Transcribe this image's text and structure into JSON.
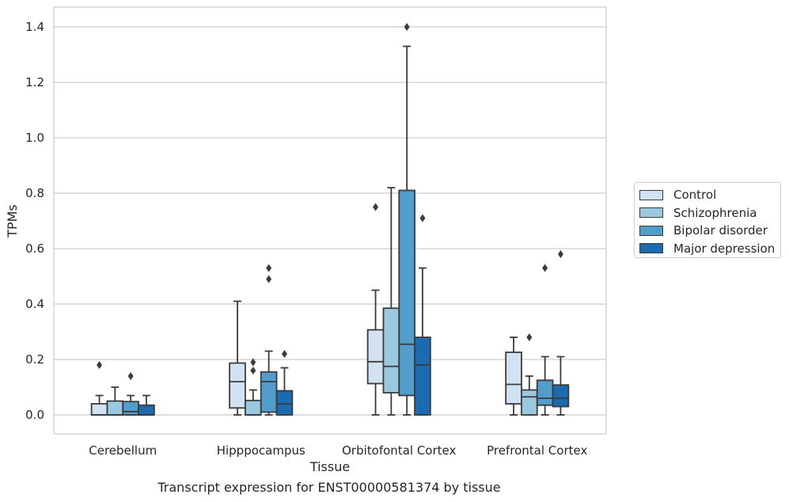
{
  "caption": "Transcript expression for ENST00000581374 by tissue",
  "chart_data": {
    "type": "box",
    "xlabel": "Tissue",
    "ylabel": "TPMs",
    "ylim": [
      -0.07,
      1.47
    ],
    "yticks": [
      "0.0",
      "0.2",
      "0.4",
      "0.6",
      "0.8",
      "1.0",
      "1.2",
      "1.4"
    ],
    "grid": true,
    "legend_position": "right",
    "categories": [
      "Cerebellum",
      "Hipppocampus",
      "Orbitofontal Cortex",
      "Prefrontal Cortex"
    ],
    "series": [
      {
        "name": "Control",
        "color": "#d1e2f2",
        "boxes": [
          {
            "whislo": 0.0,
            "q1": 0.0,
            "med": 0.0,
            "q3": 0.04,
            "whishi": 0.07,
            "fliers": [
              0.18
            ]
          },
          {
            "whislo": 0.0,
            "q1": 0.025,
            "med": 0.12,
            "q3": 0.187,
            "whishi": 0.41,
            "fliers": []
          },
          {
            "whislo": 0.0,
            "q1": 0.113,
            "med": 0.192,
            "q3": 0.307,
            "whishi": 0.45,
            "fliers": [
              0.75
            ]
          },
          {
            "whislo": 0.0,
            "q1": 0.04,
            "med": 0.11,
            "q3": 0.226,
            "whishi": 0.28,
            "fliers": []
          }
        ]
      },
      {
        "name": "Schizophrenia",
        "color": "#9ac8e0",
        "boxes": [
          {
            "whislo": 0.0,
            "q1": 0.0,
            "med": 0.0,
            "q3": 0.05,
            "whishi": 0.1,
            "fliers": []
          },
          {
            "whislo": 0.0,
            "q1": 0.0,
            "med": 0.0,
            "q3": 0.052,
            "whishi": 0.09,
            "fliers": [
              0.16,
              0.19
            ]
          },
          {
            "whislo": 0.0,
            "q1": 0.08,
            "med": 0.175,
            "q3": 0.385,
            "whishi": 0.82,
            "fliers": []
          },
          {
            "whislo": 0.0,
            "q1": 0.0,
            "med": 0.065,
            "q3": 0.09,
            "whishi": 0.14,
            "fliers": [
              0.28
            ]
          }
        ]
      },
      {
        "name": "Bipolar disorder",
        "color": "#529dcc",
        "boxes": [
          {
            "whislo": 0.0,
            "q1": 0.0,
            "med": 0.012,
            "q3": 0.048,
            "whishi": 0.07,
            "fliers": [
              0.14
            ]
          },
          {
            "whislo": 0.0,
            "q1": 0.01,
            "med": 0.12,
            "q3": 0.155,
            "whishi": 0.23,
            "fliers": [
              0.49,
              0.53
            ]
          },
          {
            "whislo": 0.0,
            "q1": 0.07,
            "med": 0.255,
            "q3": 0.81,
            "whishi": 1.33,
            "fliers": [
              1.4
            ]
          },
          {
            "whislo": 0.0,
            "q1": 0.035,
            "med": 0.06,
            "q3": 0.125,
            "whishi": 0.21,
            "fliers": [
              0.53
            ]
          }
        ]
      },
      {
        "name": "Major depression",
        "color": "#1c6aaf",
        "boxes": [
          {
            "whislo": 0.0,
            "q1": 0.0,
            "med": 0.0,
            "q3": 0.035,
            "whishi": 0.07,
            "fliers": []
          },
          {
            "whislo": 0.0,
            "q1": 0.0,
            "med": 0.04,
            "q3": 0.087,
            "whishi": 0.17,
            "fliers": [
              0.22
            ]
          },
          {
            "whislo": 0.0,
            "q1": 0.0,
            "med": 0.18,
            "q3": 0.28,
            "whishi": 0.53,
            "fliers": [
              0.71
            ]
          },
          {
            "whislo": 0.0,
            "q1": 0.03,
            "med": 0.06,
            "q3": 0.108,
            "whishi": 0.21,
            "fliers": [
              0.58
            ]
          }
        ]
      }
    ]
  }
}
